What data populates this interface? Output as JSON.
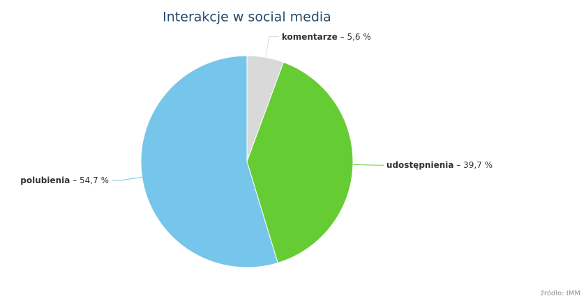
{
  "chart_data": {
    "type": "pie",
    "title": "Interakcje w social media",
    "categories": [
      "komentarze",
      "udostępnienia",
      "polubienia"
    ],
    "values": [
      5.6,
      39.7,
      54.7
    ],
    "value_labels": [
      "5,6 %",
      "39,7 %",
      "54,7 %"
    ],
    "label_separator": "–",
    "colors": [
      "#d9d9d9",
      "#66cc33",
      "#76c5ea"
    ],
    "credit": "źródło: IMM"
  }
}
